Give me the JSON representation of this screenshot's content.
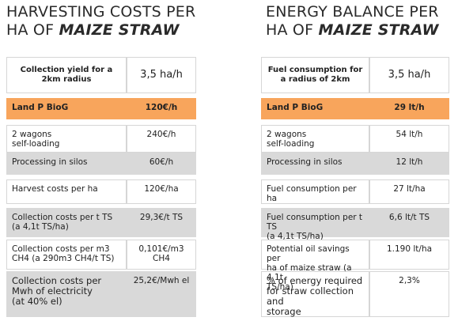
{
  "tables": [
    {
      "title": {
        "line1": "HARVESTING COSTS PER",
        "line2": "HA OF",
        "emphasis": "MAIZE STRAW"
      },
      "header": [
        "Collection yield for a 2km radius",
        "3,5 ha/h"
      ],
      "rows": [
        [
          "Land P BioG",
          "120€/h"
        ],
        [
          "2 wagons\nself-loading",
          "240€/h"
        ],
        [
          "Processing in silos",
          "60€/h"
        ],
        [
          "Harvest costs per ha",
          "120€/ha"
        ],
        [
          "Collection costs per t TS\n(a 4,1t TS/ha)",
          "29,3€/t TS"
        ],
        [
          "Collection costs per m3\nCH4 (a 290m3 CH4/t TS)",
          "0,101€/m3 CH4"
        ],
        [
          "Collection costs per\nMwh of electricity\n(at 40% el)",
          "25,2€/Mwh el"
        ]
      ]
    },
    {
      "title": {
        "line1": "ENERGY BALANCE  PER",
        "line2": "HA OF",
        "emphasis": "MAIZE STRAW"
      },
      "header": [
        "Fuel consumption for a radius of 2km",
        "3,5 ha/h"
      ],
      "rows": [
        [
          "Land P BioG",
          "29 lt/h"
        ],
        [
          "2 wagons\nself-loading",
          "54 lt/h"
        ],
        [
          "Processing in silos",
          "12 lt/h"
        ],
        [
          "Fuel consumption per ha",
          "27 lt/ha"
        ],
        [
          "Fuel consumption per t TS\n(a 4,1t TS/ha)",
          "6,6 lt/t TS"
        ],
        [
          "Potential oil savings per\nha of maize straw (a 4,1t\nTS/ha)",
          "1.190 lt/ha"
        ],
        [
          "% of energy required\nfor straw collection and\nstorage",
          "2,3%"
        ]
      ]
    }
  ]
}
